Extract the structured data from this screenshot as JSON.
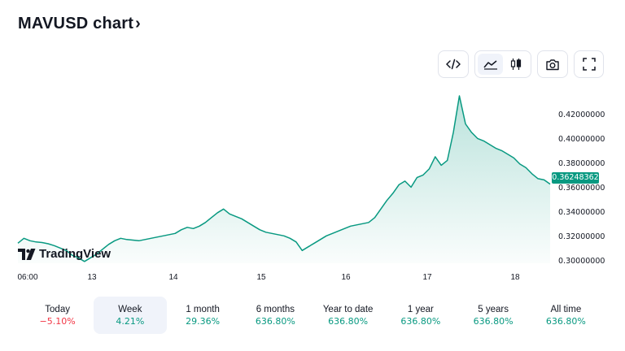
{
  "header": {
    "title": "MAVUSD chart",
    "chevron": "›"
  },
  "toolbar": {
    "embed_icon": "code-icon",
    "line_icon": "line-chart-icon",
    "candles_icon": "candlestick-icon",
    "snapshot_icon": "camera-icon",
    "fullscreen_icon": "fullscreen-icon"
  },
  "brand": {
    "logo_text": "TradingView"
  },
  "colors": {
    "line": "#089981",
    "up": "#089981",
    "down": "#f23645",
    "price_tag": "#089981"
  },
  "chart_data": {
    "type": "area",
    "series": [
      {
        "values": [
          0.314,
          0.318,
          0.316,
          0.315,
          0.3145,
          0.3135,
          0.312,
          0.31,
          0.308,
          0.304,
          0.302,
          0.299,
          0.302,
          0.305,
          0.309,
          0.313,
          0.316,
          0.318,
          0.317,
          0.3165,
          0.316,
          0.317,
          0.318,
          0.319,
          0.32,
          0.321,
          0.322,
          0.325,
          0.327,
          0.326,
          0.328,
          0.331,
          0.335,
          0.339,
          0.342,
          0.338,
          0.336,
          0.334,
          0.331,
          0.328,
          0.325,
          0.323,
          0.322,
          0.321,
          0.32,
          0.318,
          0.315,
          0.308,
          0.311,
          0.314,
          0.317,
          0.32,
          0.322,
          0.324,
          0.326,
          0.328,
          0.329,
          0.33,
          0.331,
          0.335,
          0.342,
          0.349,
          0.355,
          0.362,
          0.365,
          0.36,
          0.368,
          0.37,
          0.375,
          0.385,
          0.378,
          0.382,
          0.405,
          0.435,
          0.412,
          0.405,
          0.4,
          0.398,
          0.395,
          0.392,
          0.39,
          0.387,
          0.384,
          0.379,
          0.376,
          0.371,
          0.367,
          0.366,
          0.3625
        ]
      }
    ],
    "x_ticks": [
      "06:00",
      "13",
      "14",
      "15",
      "16",
      "17",
      "18"
    ],
    "y_ticks": [
      "0.42000000",
      "0.40000000",
      "0.38000000",
      "0.36000000",
      "0.34000000",
      "0.32000000",
      "0.30000000"
    ],
    "y_range": [
      0.2975,
      0.439
    ],
    "last_price": "0.36248362",
    "grid": false,
    "legend": "none"
  },
  "periods": [
    {
      "label": "Today",
      "change": "−5.10%",
      "dir": "down"
    },
    {
      "label": "Week",
      "change": "4.21%",
      "dir": "up"
    },
    {
      "label": "1 month",
      "change": "29.36%",
      "dir": "up"
    },
    {
      "label": "6 months",
      "change": "636.80%",
      "dir": "up"
    },
    {
      "label": "Year to date",
      "change": "636.80%",
      "dir": "up"
    },
    {
      "label": "1 year",
      "change": "636.80%",
      "dir": "up"
    },
    {
      "label": "5 years",
      "change": "636.80%",
      "dir": "up"
    },
    {
      "label": "All time",
      "change": "636.80%",
      "dir": "up"
    }
  ]
}
